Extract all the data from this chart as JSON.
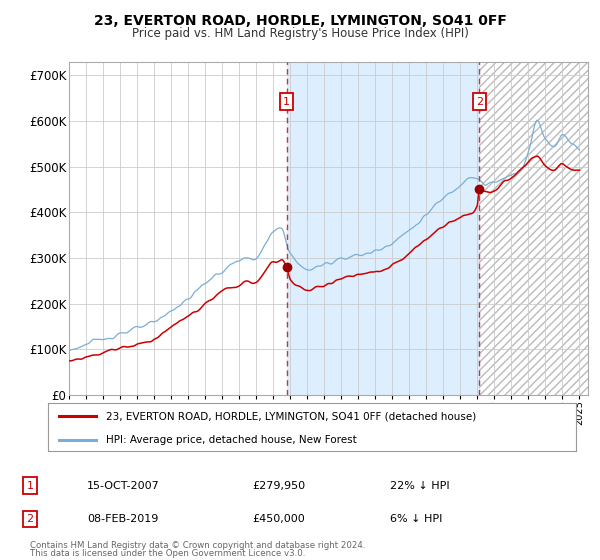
{
  "title": "23, EVERTON ROAD, HORDLE, LYMINGTON, SO41 0FF",
  "subtitle": "Price paid vs. HM Land Registry's House Price Index (HPI)",
  "legend_line1": "23, EVERTON ROAD, HORDLE, LYMINGTON, SO41 0FF (detached house)",
  "legend_line2": "HPI: Average price, detached house, New Forest",
  "annotation1_label": "1",
  "annotation1_date": "15-OCT-2007",
  "annotation1_price": "£279,950",
  "annotation1_hpi": "22% ↓ HPI",
  "annotation1_year": 2007.79,
  "annotation1_value": 279950,
  "annotation2_label": "2",
  "annotation2_date": "08-FEB-2019",
  "annotation2_price": "£450,000",
  "annotation2_hpi": "6% ↓ HPI",
  "annotation2_year": 2019.12,
  "annotation2_value": 450000,
  "hpi_color": "#7aaed6",
  "price_color": "#cc0000",
  "dot_color": "#990000",
  "vline_color": "#cc3333",
  "shade_color": "#ddeeff",
  "background_color": "#ffffff",
  "grid_color": "#cccccc",
  "footnote_line1": "Contains HM Land Registry data © Crown copyright and database right 2024.",
  "footnote_line2": "This data is licensed under the Open Government Licence v3.0.",
  "ylim": [
    0,
    730000
  ],
  "yticks": [
    0,
    100000,
    200000,
    300000,
    400000,
    500000,
    600000,
    700000
  ],
  "year_min": 1995,
  "year_max": 2025,
  "hpi_key_years": [
    1995,
    1996,
    1997,
    1998,
    1999,
    2000,
    2001,
    2002,
    2003,
    2004,
    2005,
    2006,
    2007,
    2007.5,
    2008,
    2009,
    2010,
    2011,
    2012,
    2013,
    2014,
    2015,
    2016,
    2017,
    2018,
    2018.5,
    2019,
    2019.5,
    2020,
    2021,
    2021.5,
    2022,
    2022.5,
    2023,
    2023.5,
    2024,
    2024.5,
    2025
  ],
  "hpi_key_vals": [
    98000,
    110000,
    122000,
    135000,
    145000,
    158000,
    185000,
    210000,
    245000,
    270000,
    295000,
    300000,
    355000,
    365000,
    310000,
    275000,
    285000,
    300000,
    305000,
    315000,
    335000,
    360000,
    395000,
    430000,
    460000,
    480000,
    475000,
    460000,
    465000,
    480000,
    490000,
    535000,
    600000,
    560000,
    545000,
    570000,
    555000,
    540000
  ],
  "price_key_years": [
    1995,
    1996,
    1997,
    1998,
    1999,
    2000,
    2001,
    2002,
    2003,
    2004,
    2005,
    2006,
    2007,
    2007.5,
    2007.79,
    2008,
    2008.5,
    2009,
    2010,
    2011,
    2012,
    2013,
    2014,
    2015,
    2016,
    2017,
    2018,
    2018.5,
    2019,
    2019.12,
    2019.5,
    2020,
    2020.5,
    2021,
    2021.5,
    2022,
    2022.5,
    2023,
    2023.5,
    2024,
    2024.5,
    2025
  ],
  "price_key_vals": [
    73000,
    83000,
    93000,
    103000,
    110000,
    123000,
    148000,
    172000,
    198000,
    225000,
    242000,
    248000,
    290000,
    295000,
    279950,
    252000,
    240000,
    228000,
    240000,
    255000,
    262000,
    268000,
    282000,
    310000,
    340000,
    370000,
    390000,
    395000,
    415000,
    450000,
    445000,
    448000,
    462000,
    475000,
    490000,
    510000,
    525000,
    500000,
    490000,
    505000,
    495000,
    490000
  ]
}
